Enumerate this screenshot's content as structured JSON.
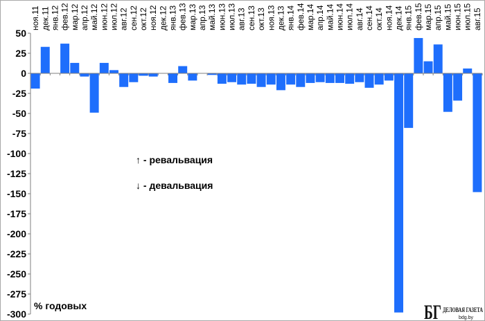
{
  "chart_data": {
    "type": "bar",
    "ylabel": "% годовых",
    "categories": [
      "ноя.11",
      "дек.11",
      "янв.12",
      "фев.12",
      "мар.12",
      "апр.12",
      "май.12",
      "июн.12",
      "июл.12",
      "авг.12",
      "сен.12",
      "окт.12",
      "ноя.12",
      "дек.12",
      "янв.13",
      "фев.13",
      "мар.13",
      "апр.13",
      "май.13",
      "июн.13",
      "июл.13",
      "авг.13",
      "сен.13",
      "окт.13",
      "ноя.13",
      "дек.13",
      "янв.14",
      "фев.14",
      "мар.14",
      "апр.14",
      "май.14",
      "июн.14",
      "июл.14",
      "авг.14",
      "сен.14",
      "окт.14",
      "ноя.14",
      "дек.14",
      "янв.15",
      "фев.15",
      "мар.15",
      "апр.15",
      "май.15",
      "июн.15",
      "июл.15",
      "авг.15"
    ],
    "values": [
      -19,
      33,
      0,
      37,
      13,
      -4,
      -49,
      13,
      4,
      -17,
      -11,
      -3,
      -4,
      0,
      -12,
      9,
      -9,
      0,
      -2,
      -13,
      -11,
      -14,
      -13,
      -17,
      -14,
      -21,
      -14,
      -17,
      -12,
      -11,
      -12,
      -12,
      -13,
      -11,
      -18,
      -14,
      -9,
      -298,
      -68,
      44,
      15,
      36,
      -48,
      -34,
      6,
      -148
    ],
    "ylim": [
      -300,
      50
    ],
    "yticks": [
      50,
      25,
      0,
      -25,
      -50,
      -75,
      -100,
      -125,
      -150,
      -175,
      -200,
      -225,
      -250,
      -275,
      -300
    ],
    "grid": false,
    "category_labels_position": "top",
    "bar_color": "#1e6efc",
    "annotations": [
      "↑ - ревальвация",
      "↓ - девальвация"
    ]
  },
  "logo": {
    "mark": "БГ",
    "name": "ДЕЛОВАЯ ГАЗЕТА",
    "site": "bdg.by"
  }
}
